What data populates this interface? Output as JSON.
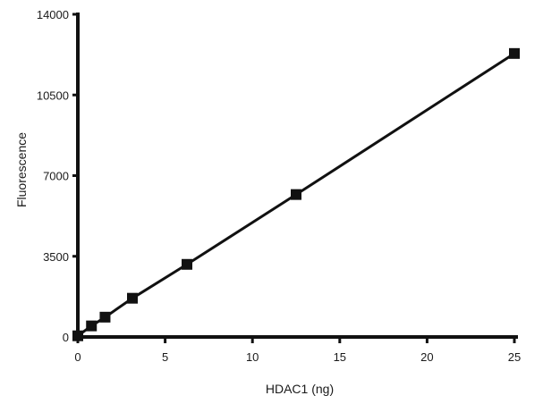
{
  "chart_data": {
    "type": "line",
    "title": "",
    "xlabel": "HDAC1 (ng)",
    "ylabel": "Fluorescence",
    "xlim": [
      0,
      25
    ],
    "ylim": [
      0,
      14000
    ],
    "x_ticks": [
      0,
      5,
      10,
      15,
      20,
      25
    ],
    "y_ticks": [
      0,
      3500,
      7000,
      10500,
      14000
    ],
    "grid": false,
    "legend": "none",
    "marker": "square",
    "color": "#111111",
    "series": [
      {
        "x": [
          0,
          0.78,
          1.56,
          3.125,
          6.25,
          12.5,
          25
        ],
        "y": [
          50,
          480,
          860,
          1680,
          3150,
          6180,
          12300
        ]
      }
    ]
  }
}
